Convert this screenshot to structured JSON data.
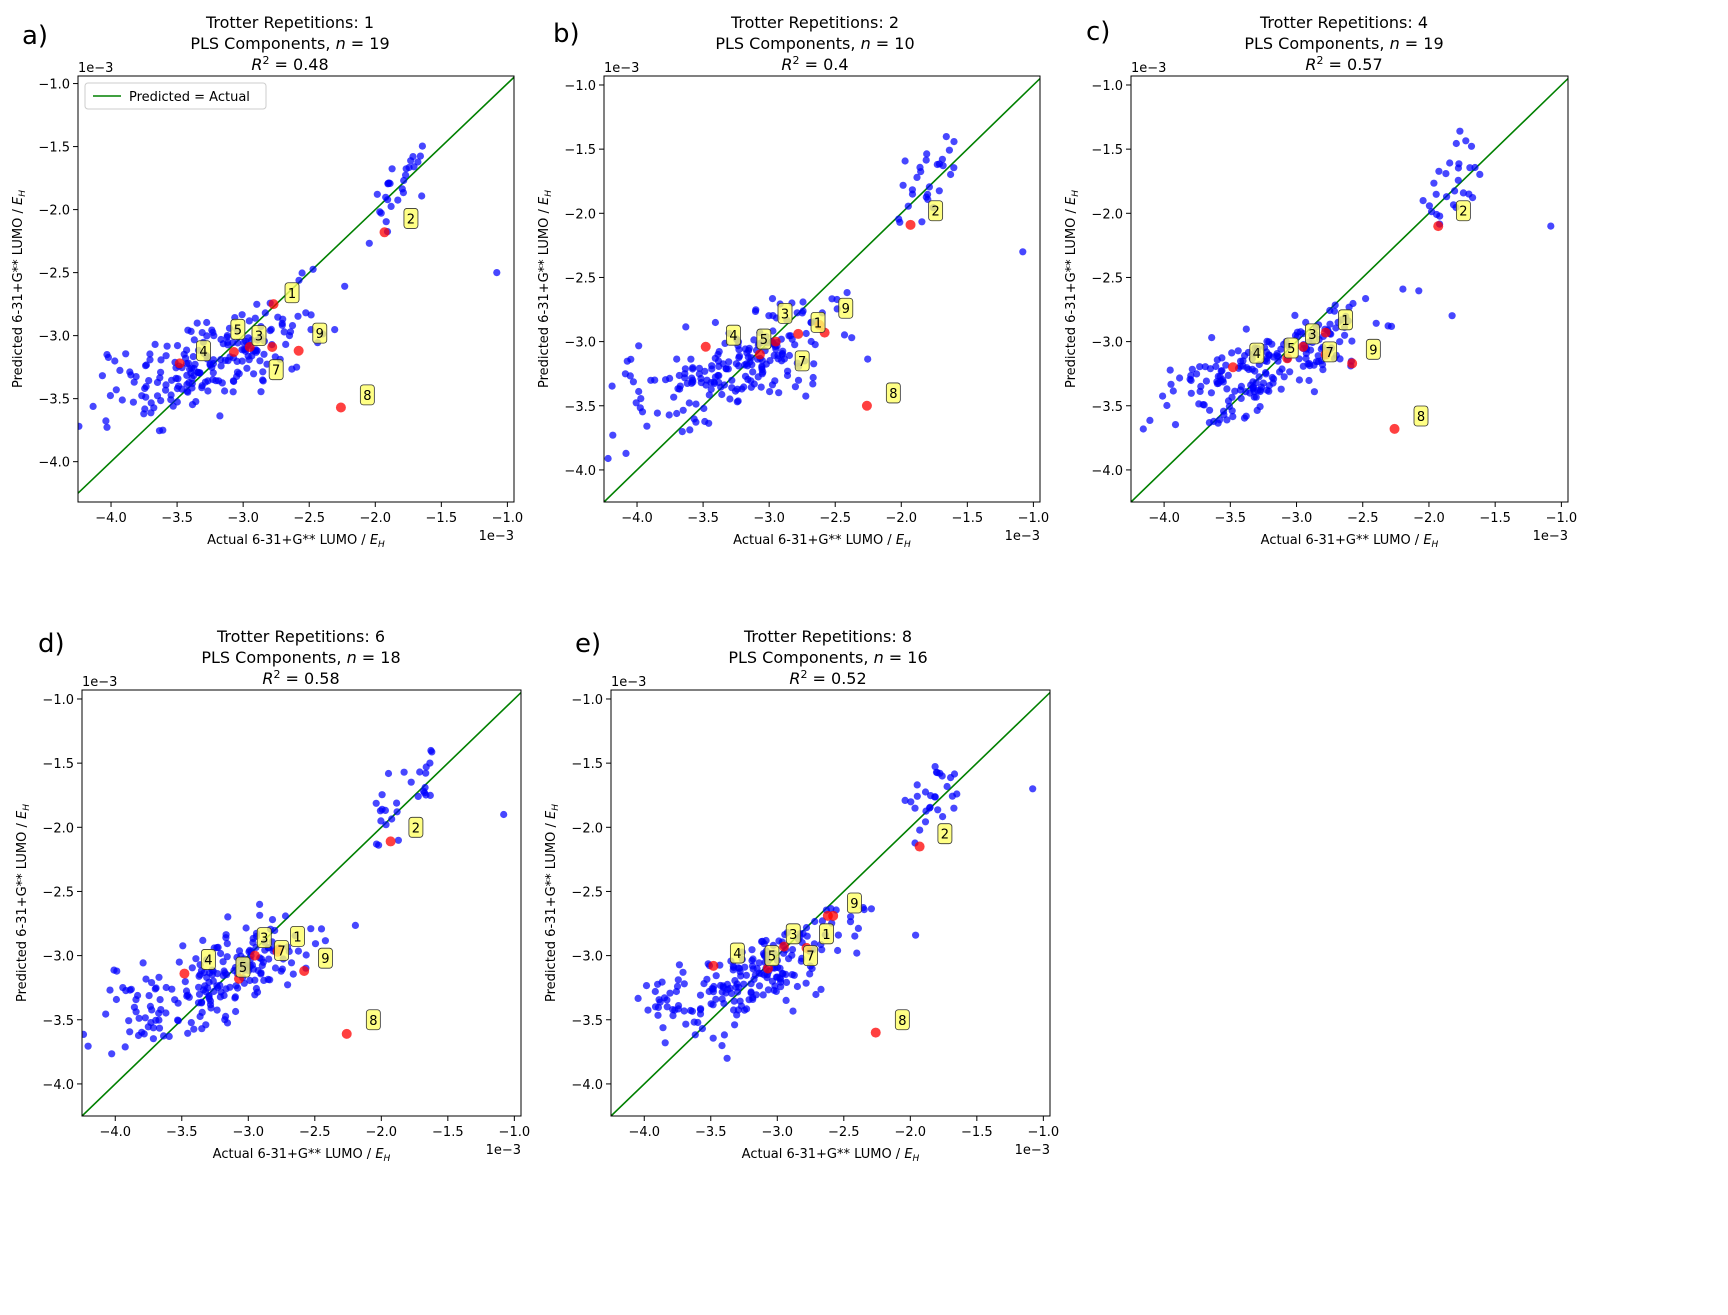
{
  "figure": {
    "legend_label": "Predicted = Actual",
    "scale_label": "1e−3",
    "xlabel": "Actual 6-31+G** LUMO / ",
    "ylabel": "Predicted 6-31+G** LUMO / ",
    "unit_symbol": "E",
    "unit_subscript": "H",
    "title_prefix": "Trotter Repetitions: ",
    "pls_prefix": "PLS Components, ",
    "n_symbol": "n",
    "r2_prefix": "R",
    "r2_exponent": "2",
    "equals": " = ",
    "tick_labels": [
      "−4.0",
      "−3.5",
      "−3.0",
      "−2.5",
      "−2.0",
      "−1.5",
      "−1.0"
    ]
  },
  "chart_data": [
    {
      "panel": "a)",
      "type": "scatter",
      "trotter_repetitions": "1",
      "pls_components": "19",
      "r2": "0.48",
      "xlim": [
        -4.25,
        -0.95
      ],
      "ylim": [
        -4.32,
        -0.94
      ],
      "ticks": [
        -4.0,
        -3.5,
        -3.0,
        -2.5,
        -2.0,
        -1.5,
        -1.0
      ],
      "xlabel": "Actual 6-31+G** LUMO / E_H",
      "ylabel": "Predicted 6-31+G** LUMO / E_H",
      "highlighted": [
        {
          "label": "1",
          "x": -2.77,
          "y": -2.75,
          "lx": -2.63,
          "ly": -2.66
        },
        {
          "label": "2",
          "x": -1.93,
          "y": -2.18,
          "lx": -1.73,
          "ly": -2.07
        },
        {
          "label": "3",
          "x": -2.95,
          "y": -3.09,
          "lx": -2.88,
          "ly": -3.0
        },
        {
          "label": "4",
          "x": -3.48,
          "y": -3.22,
          "lx": -3.3,
          "ly": -3.12
        },
        {
          "label": "5",
          "x": -3.07,
          "y": -3.13,
          "lx": -3.04,
          "ly": -2.95
        },
        {
          "label": "7",
          "x": -2.78,
          "y": -3.09,
          "lx": -2.75,
          "ly": -3.27
        },
        {
          "label": "8",
          "x": -2.26,
          "y": -3.57,
          "lx": -2.06,
          "ly": -3.47
        },
        {
          "label": "9",
          "x": -2.58,
          "y": -3.12,
          "lx": -2.42,
          "ly": -2.98
        }
      ]
    },
    {
      "panel": "b)",
      "type": "scatter",
      "trotter_repetitions": "2",
      "pls_components": "10",
      "r2": "0.4",
      "xlim": [
        -4.25,
        -0.95
      ],
      "ylim": [
        -4.25,
        -0.93
      ],
      "ticks": [
        -4.0,
        -3.5,
        -3.0,
        -2.5,
        -2.0,
        -1.5,
        -1.0
      ],
      "xlabel": "Actual 6-31+G** LUMO / E_H",
      "ylabel": "Predicted 6-31+G** LUMO / E_H",
      "highlighted": [
        {
          "label": "1",
          "x": -2.62,
          "y": -2.87,
          "lx": -2.63,
          "ly": -2.85
        },
        {
          "label": "2",
          "x": -1.93,
          "y": -2.09,
          "lx": -1.74,
          "ly": -1.98
        },
        {
          "label": "3",
          "x": -2.95,
          "y": -3.0,
          "lx": -2.88,
          "ly": -2.78
        },
        {
          "label": "4",
          "x": -3.48,
          "y": -3.04,
          "lx": -3.27,
          "ly": -2.95
        },
        {
          "label": "5",
          "x": -3.07,
          "y": -3.1,
          "lx": -3.04,
          "ly": -2.98
        },
        {
          "label": "7",
          "x": -2.78,
          "y": -2.94,
          "lx": -2.75,
          "ly": -3.15
        },
        {
          "label": "8",
          "x": -2.26,
          "y": -3.5,
          "lx": -2.06,
          "ly": -3.4
        },
        {
          "label": "9",
          "x": -2.58,
          "y": -2.93,
          "lx": -2.42,
          "ly": -2.74
        }
      ]
    },
    {
      "panel": "c)",
      "type": "scatter",
      "trotter_repetitions": "4",
      "pls_components": "19",
      "r2": "0.57",
      "xlim": [
        -4.25,
        -0.95
      ],
      "ylim": [
        -4.25,
        -0.93
      ],
      "ticks": [
        -4.0,
        -3.5,
        -3.0,
        -2.5,
        -2.0,
        -1.5,
        -1.0
      ],
      "xlabel": "Actual 6-31+G** LUMO / E_H",
      "ylabel": "Predicted 6-31+G** LUMO / E_H",
      "highlighted": [
        {
          "label": "1",
          "x": -2.78,
          "y": -2.93,
          "lx": -2.63,
          "ly": -2.83
        },
        {
          "label": "2",
          "x": -1.93,
          "y": -2.1,
          "lx": -1.74,
          "ly": -1.98
        },
        {
          "label": "3",
          "x": -2.95,
          "y": -3.04,
          "lx": -2.88,
          "ly": -2.94
        },
        {
          "label": "4",
          "x": -3.48,
          "y": -3.2,
          "lx": -3.3,
          "ly": -3.09
        },
        {
          "label": "5",
          "x": -3.07,
          "y": -3.13,
          "lx": -3.04,
          "ly": -3.05
        },
        {
          "label": "7",
          "x": -2.78,
          "y": -3.1,
          "lx": -2.75,
          "ly": -3.08
        },
        {
          "label": "8",
          "x": -2.26,
          "y": -3.68,
          "lx": -2.06,
          "ly": -3.58
        },
        {
          "label": "9",
          "x": -2.58,
          "y": -3.17,
          "lx": -2.42,
          "ly": -3.06
        }
      ]
    },
    {
      "panel": "d)",
      "type": "scatter",
      "trotter_repetitions": "6",
      "pls_components": "18",
      "r2": "0.58",
      "xlim": [
        -4.25,
        -0.95
      ],
      "ylim": [
        -4.25,
        -0.93
      ],
      "ticks": [
        -4.0,
        -3.5,
        -3.0,
        -2.5,
        -2.0,
        -1.5,
        -1.0
      ],
      "xlabel": "Actual 6-31+G** LUMO / E_H",
      "ylabel": "Predicted 6-31+G** LUMO / E_H",
      "highlighted": [
        {
          "label": "1",
          "x": -2.77,
          "y": -2.95,
          "lx": -2.63,
          "ly": -2.85
        },
        {
          "label": "2",
          "x": -1.93,
          "y": -2.11,
          "lx": -1.74,
          "ly": -2.0
        },
        {
          "label": "3",
          "x": -2.95,
          "y": -3.0,
          "lx": -2.88,
          "ly": -2.86
        },
        {
          "label": "4",
          "x": -3.48,
          "y": -3.14,
          "lx": -3.3,
          "ly": -3.03
        },
        {
          "label": "5",
          "x": -3.07,
          "y": -3.18,
          "lx": -3.04,
          "ly": -3.09
        },
        {
          "label": "7",
          "x": -2.78,
          "y": -2.97,
          "lx": -2.75,
          "ly": -2.96
        },
        {
          "label": "8",
          "x": -2.26,
          "y": -3.61,
          "lx": -2.06,
          "ly": -3.5
        },
        {
          "label": "9",
          "x": -2.58,
          "y": -3.12,
          "lx": -2.42,
          "ly": -3.02
        }
      ]
    },
    {
      "panel": "e)",
      "type": "scatter",
      "trotter_repetitions": "8",
      "pls_components": "16",
      "r2": "0.52",
      "xlim": [
        -4.25,
        -0.95
      ],
      "ylim": [
        -4.25,
        -0.93
      ],
      "ticks": [
        -4.0,
        -3.5,
        -3.0,
        -2.5,
        -2.0,
        -1.5,
        -1.0
      ],
      "xlabel": "Actual 6-31+G** LUMO / E_H",
      "ylabel": "Predicted 6-31+G** LUMO / E_H",
      "highlighted": [
        {
          "label": "1",
          "x": -2.62,
          "y": -2.69,
          "lx": -2.63,
          "ly": -2.83
        },
        {
          "label": "2",
          "x": -1.93,
          "y": -2.15,
          "lx": -1.74,
          "ly": -2.05
        },
        {
          "label": "3",
          "x": -2.95,
          "y": -2.93,
          "lx": -2.88,
          "ly": -2.83
        },
        {
          "label": "4",
          "x": -3.48,
          "y": -3.08,
          "lx": -3.3,
          "ly": -2.98
        },
        {
          "label": "5",
          "x": -3.07,
          "y": -3.1,
          "lx": -3.04,
          "ly": -3.0
        },
        {
          "label": "7",
          "x": -2.78,
          "y": -2.94,
          "lx": -2.75,
          "ly": -3.0
        },
        {
          "label": "8",
          "x": -2.26,
          "y": -3.6,
          "lx": -2.06,
          "ly": -3.5
        },
        {
          "label": "9",
          "x": -2.58,
          "y": -2.69,
          "lx": -2.42,
          "ly": -2.59
        }
      ]
    }
  ]
}
